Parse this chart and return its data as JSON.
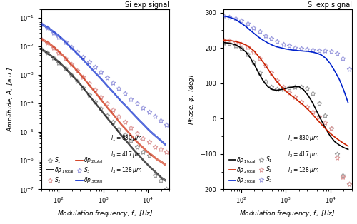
{
  "title": "Si exp signal",
  "xlabel": "Modulation frequency, $f,$ [Hz]",
  "ylabel_left": "Amplitude, $A,$ [a.u.]",
  "ylabel_right": "Phase, $\\varphi,$ [deg]",
  "xlim": [
    40,
    30000
  ],
  "amp_ylim": [
    1e-07,
    0.2
  ],
  "phase_ylim": [
    -200,
    310
  ],
  "colors": {
    "black": "#000000",
    "red": "#cc2200",
    "blue": "#0022cc",
    "gray_star": "#999999",
    "pink_star": "#dd9999",
    "lblue_star": "#9999dd"
  },
  "freq_line": [
    40,
    50,
    60,
    70,
    80,
    100,
    130,
    160,
    200,
    250,
    320,
    400,
    500,
    630,
    800,
    1000,
    1250,
    1600,
    2000,
    2500,
    3200,
    4000,
    5000,
    6300,
    8000,
    10000,
    12500,
    16000,
    20000,
    25000
  ],
  "amp1_line": [
    0.008,
    0.0065,
    0.0053,
    0.0044,
    0.0037,
    0.0028,
    0.0019,
    0.00135,
    0.00095,
    0.00065,
    0.00042,
    0.00027,
    0.000175,
    0.00011,
    7e-05,
    4.5e-05,
    2.9e-05,
    1.85e-05,
    1.2e-05,
    7.8e-06,
    5e-06,
    3.3e-06,
    2.2e-06,
    1.5e-06,
    1e-06,
    7e-07,
    5e-07,
    3.5e-07,
    2.5e-07,
    2e-07
  ],
  "amp2_line": [
    0.018,
    0.015,
    0.0125,
    0.0105,
    0.0088,
    0.0065,
    0.0044,
    0.003,
    0.0021,
    0.00145,
    0.00095,
    0.00062,
    0.0004,
    0.00026,
    0.000165,
    0.000105,
    6.8e-05,
    4.4e-05,
    2.85e-05,
    1.85e-05,
    1.22e-05,
    8.2e-06,
    5.5e-06,
    3.8e-06,
    2.7e-06,
    1.95e-06,
    1.5e-06,
    1.1e-06,
    9e-07,
    7e-07
  ],
  "amp3_line": [
    0.06,
    0.05,
    0.042,
    0.035,
    0.03,
    0.023,
    0.016,
    0.0115,
    0.0082,
    0.0058,
    0.0039,
    0.0027,
    0.00185,
    0.00125,
    0.00085,
    0.00058,
    0.00039,
    0.00026,
    0.000175,
    0.000118,
    8e-05,
    5.5e-05,
    3.8e-05,
    2.6e-05,
    1.8e-05,
    1.25e-05,
    9e-06,
    6.5e-06,
    4.8e-06,
    3.5e-06
  ],
  "freq_star": [
    40,
    55,
    75,
    100,
    140,
    190,
    260,
    350,
    480,
    650,
    880,
    1200,
    1600,
    2200,
    3000,
    4100,
    5600,
    7600,
    10500,
    14000,
    19000,
    26000
  ],
  "amp1_star": [
    0.008,
    0.0058,
    0.004,
    0.0027,
    0.0017,
    0.001,
    0.0006,
    0.00035,
    0.0002,
    0.00011,
    6.5e-05,
    3.8e-05,
    2.2e-05,
    1.3e-05,
    8e-06,
    5e-06,
    3e-06,
    2e-06,
    1.5e-06,
    3e-07,
    2e-07,
    1e-07
  ],
  "amp2_star": [
    0.018,
    0.013,
    0.009,
    0.006,
    0.0038,
    0.0023,
    0.0014,
    0.00085,
    0.0005,
    0.00029,
    0.00017,
    0.0001,
    6e-05,
    3.6e-05,
    2.2e-05,
    1.4e-05,
    9e-06,
    6e-06,
    4.5e-06,
    3e-06,
    2.5e-06,
    2e-06
  ],
  "amp3_star": [
    0.06,
    0.043,
    0.03,
    0.021,
    0.014,
    0.0095,
    0.0063,
    0.0042,
    0.0028,
    0.00185,
    0.00122,
    0.0008,
    0.00052,
    0.00034,
    0.00022,
    0.000145,
    0.0001,
    7e-05,
    5e-05,
    3.5e-05,
    2.5e-05,
    1.8e-05
  ],
  "ph1_line": [
    215,
    214,
    212,
    210,
    207,
    200,
    188,
    172,
    152,
    128,
    105,
    90,
    82,
    80,
    82,
    85,
    88,
    90,
    90,
    82,
    65,
    45,
    20,
    -5,
    -30,
    -50,
    -65,
    -75,
    -82,
    -87
  ],
  "ph2_line": [
    222,
    221,
    220,
    219,
    217,
    214,
    208,
    200,
    190,
    175,
    158,
    140,
    122,
    105,
    90,
    78,
    68,
    58,
    48,
    38,
    25,
    12,
    -2,
    -16,
    -30,
    -42,
    -52,
    -62,
    -70,
    -78
  ],
  "ph3_line": [
    290,
    288,
    285,
    282,
    278,
    270,
    260,
    250,
    240,
    230,
    221,
    214,
    208,
    203,
    200,
    197,
    195,
    193,
    192,
    191,
    190,
    188,
    185,
    180,
    170,
    155,
    135,
    110,
    80,
    45
  ],
  "ph1_star": [
    215,
    212,
    207,
    198,
    183,
    160,
    130,
    105,
    90,
    83,
    84,
    87,
    90,
    90,
    85,
    72,
    42,
    8,
    -28,
    -100,
    -160,
    -185
  ],
  "ph2_star": [
    222,
    220,
    216,
    211,
    202,
    188,
    170,
    150,
    130,
    108,
    90,
    74,
    60,
    46,
    33,
    18,
    4,
    -11,
    -27,
    -110,
    -165,
    -185
  ],
  "ph3_star": [
    290,
    287,
    283,
    277,
    268,
    257,
    246,
    235,
    226,
    218,
    211,
    206,
    201,
    198,
    196,
    194,
    193,
    192,
    190,
    185,
    170,
    140
  ]
}
